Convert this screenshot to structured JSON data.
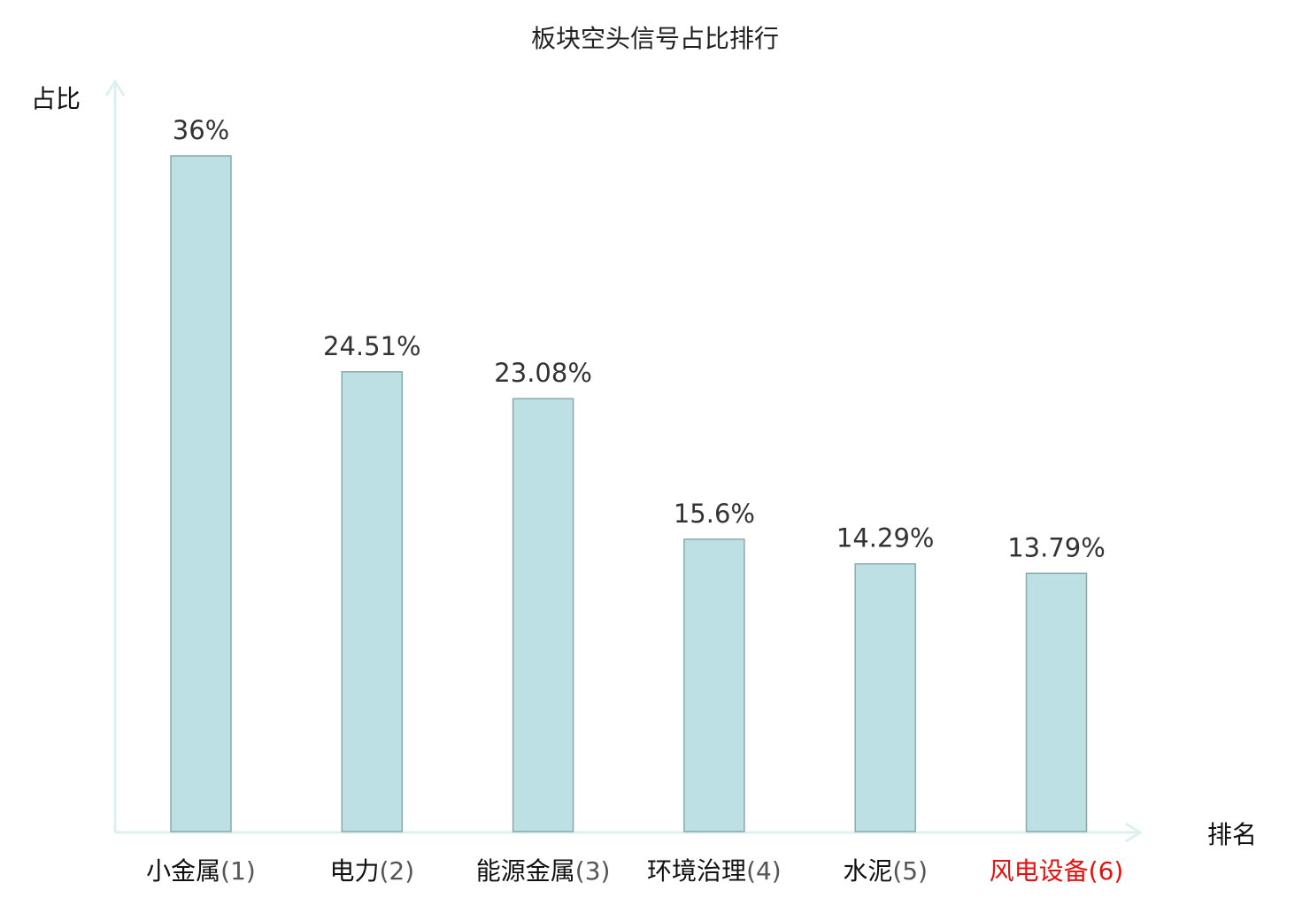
{
  "chart_data": {
    "type": "bar",
    "title": "板块空头信号占比排行",
    "ylabel": "占比",
    "xlabel": "排名",
    "ylim": [
      0,
      36
    ],
    "grid": false,
    "categories": [
      {
        "name": "小金属",
        "rank": "(1)",
        "highlight": false
      },
      {
        "name": "电力",
        "rank": "(2)",
        "highlight": false
      },
      {
        "name": "能源金属",
        "rank": "(3)",
        "highlight": false
      },
      {
        "name": "环境治理",
        "rank": "(4)",
        "highlight": false
      },
      {
        "name": "水泥",
        "rank": "(5)",
        "highlight": false
      },
      {
        "name": "风电设备",
        "rank": "(6)",
        "highlight": true
      }
    ],
    "values": [
      36,
      24.51,
      23.08,
      15.6,
      14.29,
      13.79
    ],
    "value_labels": [
      "36%",
      "24.51%",
      "23.08%",
      "15.6%",
      "14.29%",
      "13.79%"
    ],
    "colors": {
      "bar": "#bce0e3",
      "bar_stroke": "#8aa9ab",
      "axis": "#dcf1ef",
      "highlight": "#e8100f",
      "rank": "#555555"
    }
  }
}
